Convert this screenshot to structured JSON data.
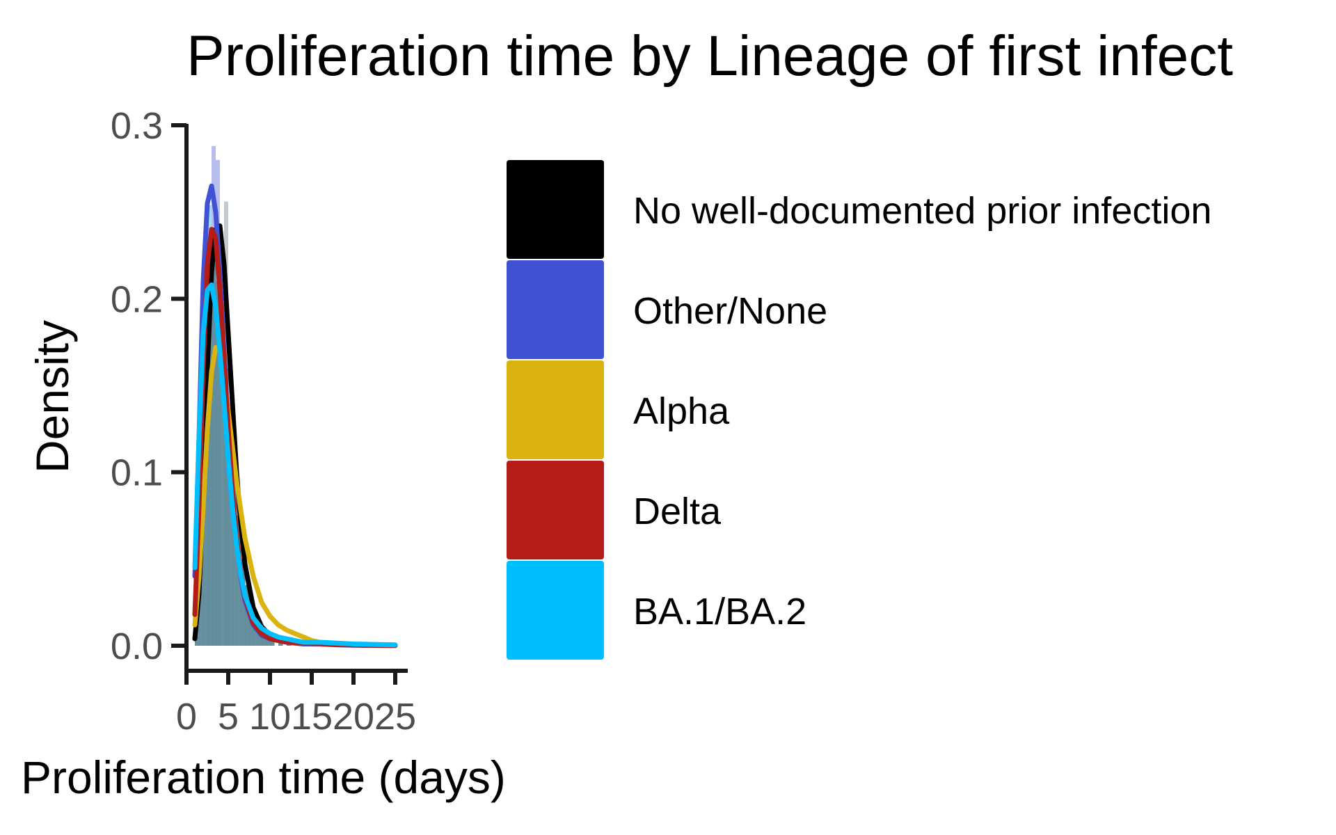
{
  "chart_data": {
    "type": "area",
    "title": "Proliferation time by Lineage of first infect",
    "xlabel": "Proliferation time (days)",
    "ylabel": "Density",
    "xlim": [
      0,
      25
    ],
    "ylim": [
      0,
      0.3
    ],
    "x_ticks": [
      "0",
      "5",
      "10",
      "15",
      "20",
      "25"
    ],
    "x_tick_values": [
      0,
      5,
      10,
      15,
      20,
      25
    ],
    "y_ticks": [
      "0.0",
      "0.1",
      "0.2",
      "0.3"
    ],
    "y_tick_values": [
      0,
      0.1,
      0.2,
      0.3
    ],
    "grid": false,
    "legend_position": "right",
    "histogram": {
      "color": "#5f8a99",
      "bin_width": 0.5,
      "bars": [
        {
          "x": 1.25,
          "y": 0.06
        },
        {
          "x": 1.75,
          "y": 0.13
        },
        {
          "x": 2.25,
          "y": 0.2
        },
        {
          "x": 2.75,
          "y": 0.23
        },
        {
          "x": 3.25,
          "y": 0.22
        },
        {
          "x": 3.75,
          "y": 0.21
        },
        {
          "x": 4.25,
          "y": 0.19
        },
        {
          "x": 4.75,
          "y": 0.16
        },
        {
          "x": 5.25,
          "y": 0.13
        },
        {
          "x": 5.75,
          "y": 0.1
        },
        {
          "x": 6.25,
          "y": 0.075
        },
        {
          "x": 6.75,
          "y": 0.05
        },
        {
          "x": 7.25,
          "y": 0.035
        },
        {
          "x": 7.75,
          "y": 0.025
        },
        {
          "x": 8.25,
          "y": 0.018
        },
        {
          "x": 8.75,
          "y": 0.012
        },
        {
          "x": 9.25,
          "y": 0.008
        },
        {
          "x": 9.75,
          "y": 0.005
        },
        {
          "x": 10.25,
          "y": 0.003
        },
        {
          "x": 11.25,
          "y": 0.002
        },
        {
          "x": 12.25,
          "y": 0.001
        }
      ],
      "highlight_bars": [
        {
          "x": 3.25,
          "y": 0.288,
          "color": "#aab2ea"
        },
        {
          "x": 3.75,
          "y": 0.28,
          "color": "#aab2ea"
        },
        {
          "x": 2.75,
          "y": 0.254,
          "color": "#8fd8f2"
        },
        {
          "x": 4.75,
          "y": 0.256,
          "color": "#b8c0c4"
        }
      ]
    },
    "series": [
      {
        "name": "No well-documented prior infection",
        "color": "#000000",
        "x": [
          1,
          1.5,
          2,
          2.5,
          3,
          3.5,
          4,
          4.5,
          5,
          5.5,
          6,
          6.5,
          7,
          8,
          9,
          10,
          11,
          12,
          14,
          16,
          18,
          20,
          22,
          25
        ],
        "y": [
          0.004,
          0.03,
          0.09,
          0.16,
          0.215,
          0.24,
          0.242,
          0.22,
          0.18,
          0.14,
          0.1,
          0.07,
          0.047,
          0.022,
          0.011,
          0.006,
          0.004,
          0.003,
          0.002,
          0.001,
          0.001,
          0.0005,
          0.0003,
          0.0002
        ]
      },
      {
        "name": "Other/None",
        "color": "#4051d4",
        "x": [
          1,
          1.5,
          2,
          2.5,
          3,
          3.5,
          4,
          4.5,
          5,
          5.5,
          6,
          6.5,
          7,
          8,
          9,
          10,
          11,
          12,
          14,
          16,
          18,
          20,
          22,
          25
        ],
        "y": [
          0.04,
          0.12,
          0.21,
          0.255,
          0.265,
          0.25,
          0.215,
          0.17,
          0.125,
          0.09,
          0.06,
          0.04,
          0.026,
          0.012,
          0.006,
          0.004,
          0.003,
          0.002,
          0.001,
          0.001,
          0.0005,
          0.0003,
          0.0002,
          0.0001
        ]
      },
      {
        "name": "Alpha",
        "color": "#dbb310",
        "x": [
          1,
          1.5,
          2,
          2.5,
          3,
          3.5,
          4,
          4.5,
          5,
          5.5,
          6,
          6.5,
          7,
          8,
          9,
          10,
          11,
          12,
          13,
          14,
          15,
          16,
          18,
          20,
          22,
          25
        ],
        "y": [
          0.012,
          0.04,
          0.08,
          0.125,
          0.158,
          0.172,
          0.17,
          0.155,
          0.135,
          0.115,
          0.095,
          0.078,
          0.062,
          0.04,
          0.025,
          0.017,
          0.012,
          0.009,
          0.007,
          0.005,
          0.003,
          0.002,
          0.001,
          0.0008,
          0.0005,
          0.0002
        ]
      },
      {
        "name": "Delta",
        "color": "#b31c17",
        "x": [
          1,
          1.5,
          2,
          2.5,
          3,
          3.5,
          4,
          4.5,
          5,
          5.5,
          6,
          6.5,
          7,
          8,
          9,
          10,
          11,
          12,
          14,
          16,
          18,
          20,
          22,
          25
        ],
        "y": [
          0.018,
          0.08,
          0.16,
          0.22,
          0.24,
          0.235,
          0.205,
          0.165,
          0.125,
          0.09,
          0.062,
          0.042,
          0.028,
          0.013,
          0.007,
          0.004,
          0.003,
          0.002,
          0.0015,
          0.001,
          0.0007,
          0.0004,
          0.0002,
          0.0001
        ]
      },
      {
        "name": "BA.1/BA.2",
        "color": "#00bfff",
        "x": [
          1,
          1.5,
          2,
          2.5,
          3,
          3.5,
          4,
          4.5,
          5,
          5.5,
          6,
          6.5,
          7,
          8,
          9,
          10,
          11,
          12,
          13,
          14,
          16,
          18,
          20,
          22,
          25
        ],
        "y": [
          0.045,
          0.12,
          0.18,
          0.205,
          0.208,
          0.195,
          0.17,
          0.14,
          0.108,
          0.08,
          0.058,
          0.041,
          0.029,
          0.016,
          0.01,
          0.007,
          0.005,
          0.004,
          0.003,
          0.002,
          0.002,
          0.0015,
          0.001,
          0.0008,
          0.0005
        ]
      }
    ]
  }
}
